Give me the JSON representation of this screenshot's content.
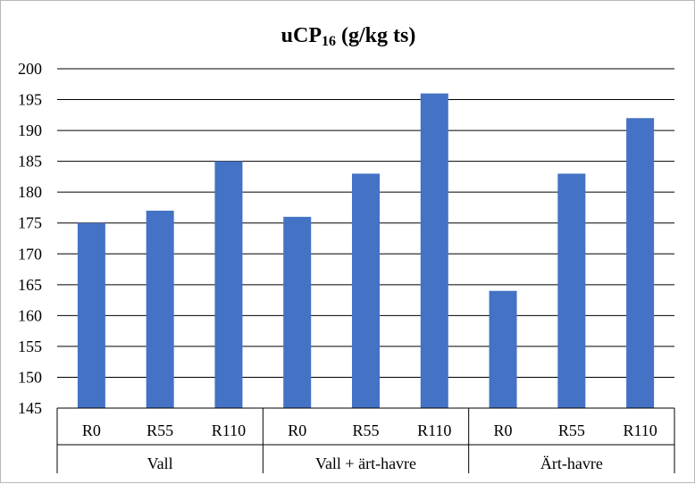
{
  "chart_data": {
    "type": "bar",
    "title_main": "uCP",
    "title_sub": "16",
    "title_rest": " (g/kg ts)",
    "ylim": [
      145,
      200
    ],
    "yticks": [
      145,
      150,
      155,
      160,
      165,
      170,
      175,
      180,
      185,
      190,
      195,
      200
    ],
    "grid": true,
    "bar_color": "#4472C4",
    "groups": [
      {
        "name": "Vall",
        "categories": [
          "R0",
          "R55",
          "R110"
        ],
        "values": [
          175,
          177,
          185
        ]
      },
      {
        "name": "Vall + ärt-havre",
        "categories": [
          "R0",
          "R55",
          "R110"
        ],
        "values": [
          176,
          183,
          196
        ]
      },
      {
        "name": "Ärt-havre",
        "categories": [
          "R0",
          "R55",
          "R110"
        ],
        "values": [
          164,
          183,
          192
        ]
      }
    ]
  }
}
